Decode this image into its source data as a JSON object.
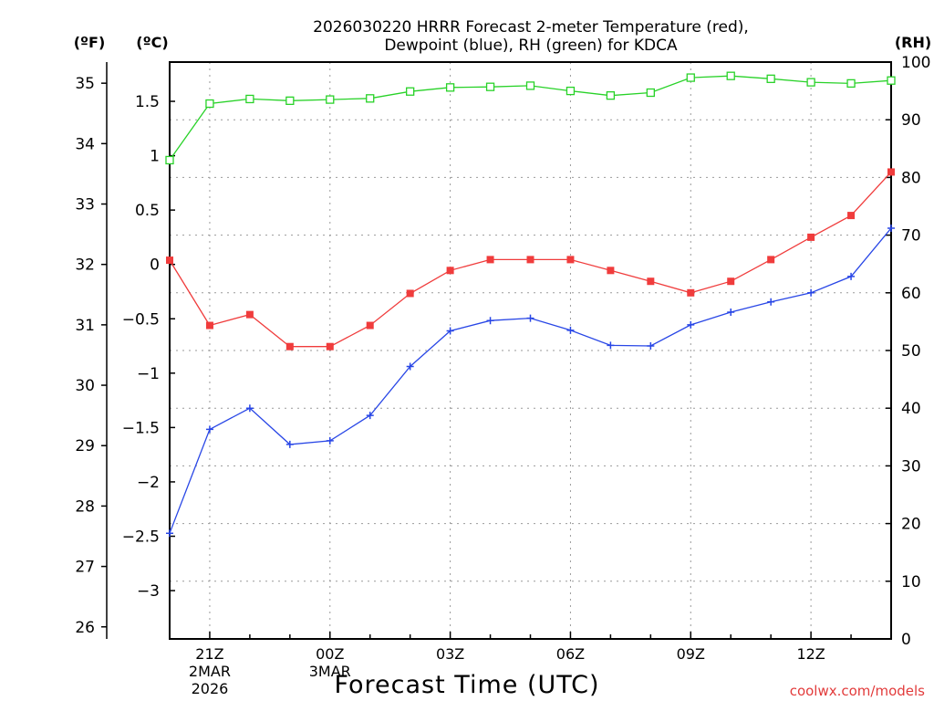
{
  "chart_data": {
    "type": "line",
    "title_line1": "2026030220 HRRR Forecast 2-meter Temperature (red),",
    "title_line2": "Dewpoint (blue), RH (green) for KDCA",
    "xlabel": "Forecast Time (UTC)",
    "credit": "coolwx.com/models",
    "unit_f": "(ºF)",
    "unit_c": "(ºC)",
    "unit_rh": "(RH)",
    "x_ticks": [
      {
        "hour": 1,
        "label": "21Z"
      },
      {
        "hour": 4,
        "label": "00Z"
      },
      {
        "hour": 7,
        "label": "03Z"
      },
      {
        "hour": 10,
        "label": "06Z"
      },
      {
        "hour": 13,
        "label": "09Z"
      },
      {
        "hour": 16,
        "label": "12Z"
      }
    ],
    "date_labels": [
      {
        "hour": 1,
        "lines": [
          "2MAR",
          "2026"
        ]
      },
      {
        "hour": 4,
        "lines": [
          "3MAR"
        ]
      }
    ],
    "f_ticks": [
      "26",
      "27",
      "28",
      "29",
      "30",
      "31",
      "32",
      "33",
      "34",
      "35"
    ],
    "c_ticks": [
      "−3",
      "−2.5",
      "−2",
      "−1.5",
      "−1",
      "−0.5",
      "0",
      "0.5",
      "1",
      "1.5"
    ],
    "rh_ticks": [
      "0",
      "10",
      "20",
      "30",
      "40",
      "50",
      "60",
      "70",
      "80",
      "90",
      "100"
    ],
    "axes": {
      "x_range_hours": [
        0,
        18
      ],
      "temp_range_f": [
        25.8,
        35.35
      ],
      "rh_range": [
        0,
        100
      ]
    },
    "grid": true,
    "series": [
      {
        "name": "Temperature",
        "units": "°F",
        "color": "#f03c3c",
        "marker": "filled-square",
        "axis": "temp",
        "hours": [
          0,
          1,
          2,
          3,
          4,
          5,
          6,
          7,
          8,
          9,
          10,
          11,
          12,
          13,
          14,
          15,
          16,
          17,
          18
        ],
        "values": [
          32.07,
          30.99,
          31.17,
          30.64,
          30.64,
          30.99,
          31.52,
          31.9,
          32.08,
          32.08,
          32.08,
          31.9,
          31.72,
          31.53,
          31.72,
          32.08,
          32.45,
          32.81,
          33.53
        ]
      },
      {
        "name": "Dewpoint",
        "units": "°F",
        "color": "#2846e6",
        "marker": "plus",
        "axis": "temp",
        "hours": [
          0,
          1,
          2,
          3,
          4,
          5,
          6,
          7,
          8,
          9,
          10,
          11,
          12,
          13,
          14,
          15,
          16,
          17,
          18
        ],
        "values": [
          27.55,
          29.27,
          29.62,
          29.02,
          29.08,
          29.5,
          30.31,
          30.9,
          31.07,
          31.11,
          30.91,
          30.66,
          30.65,
          31.0,
          31.21,
          31.38,
          31.53,
          31.8,
          32.6
        ]
      },
      {
        "name": "RH",
        "units": "%",
        "color": "#28d228",
        "marker": "open-square",
        "axis": "rh",
        "hours": [
          0,
          1,
          2,
          3,
          4,
          5,
          6,
          7,
          8,
          9,
          10,
          11,
          12,
          13,
          14,
          15,
          16,
          17,
          18
        ],
        "values": [
          83.0,
          92.8,
          93.6,
          93.3,
          93.5,
          93.7,
          94.9,
          95.6,
          95.7,
          95.9,
          95.0,
          94.2,
          94.7,
          97.3,
          97.6,
          97.1,
          96.5,
          96.3,
          96.8
        ]
      }
    ]
  }
}
